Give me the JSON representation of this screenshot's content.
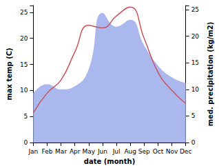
{
  "chart_data": {
    "type": "line",
    "categories": [
      "Jan",
      "Feb",
      "Mar",
      "Apr",
      "May",
      "Jun",
      "Jul",
      "Aug",
      "Sep",
      "Oct",
      "Nov",
      "Dec"
    ],
    "x_label": "date (month)",
    "y_label": "max temp (C)",
    "y2_label": "med. precipitation (kg/m2)",
    "ylim": [
      0,
      26.3
    ],
    "yticks": [
      0,
      5,
      10,
      15,
      20,
      25
    ],
    "y2lim": [
      0,
      25.8
    ],
    "y2ticks": [
      0,
      5,
      10,
      15,
      20,
      25
    ],
    "grid": false,
    "series": [
      {
        "name": "med. precipitation",
        "type": "area",
        "axis": "y2",
        "color": "#aab8ee",
        "values": [
          9.3,
          11,
          10,
          10.6,
          13.8,
          24.4,
          21.8,
          23.1,
          18.3,
          14.5,
          12.3,
          11.2
        ]
      },
      {
        "name": "max temp",
        "type": "line",
        "axis": "y",
        "color": "#c8545a",
        "values": [
          5.7,
          9.5,
          12,
          17.4,
          22.5,
          22,
          24.3,
          26,
          20,
          13.5,
          10,
          7.5
        ]
      }
    ]
  }
}
